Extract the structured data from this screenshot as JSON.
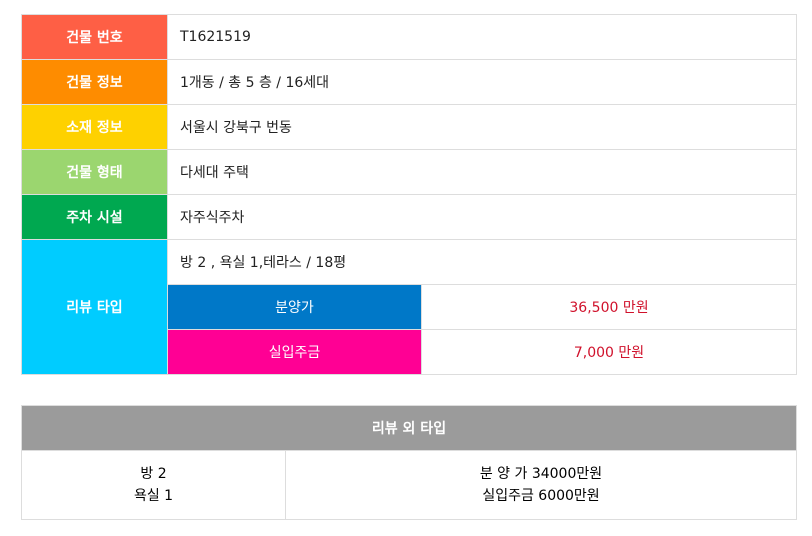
{
  "info": {
    "rows": [
      {
        "label": "건물 번호",
        "value": "T1621519"
      },
      {
        "label": "건물 정보",
        "value": "1개동 / 총 5 층 / 16세대"
      },
      {
        "label": "소재 정보",
        "value": "서울시 강북구 번동"
      },
      {
        "label": "건물 형태",
        "value": "다세대 주택"
      },
      {
        "label": "주차 시설",
        "value": "자주식주차"
      }
    ],
    "review": {
      "label": "리뷰 타입",
      "summary": "방 2 , 욕실 1,테라스 / 18평",
      "prices": [
        {
          "label": "분양가",
          "value": "36,500 만원"
        },
        {
          "label": "실입주금",
          "value": "7,000 만원"
        }
      ]
    }
  },
  "other": {
    "title": "리뷰 외 타입",
    "left": [
      "방 2",
      "욕실 1"
    ],
    "right": [
      "분 양 가 34000만원",
      "실입주금 6000만원"
    ]
  }
}
